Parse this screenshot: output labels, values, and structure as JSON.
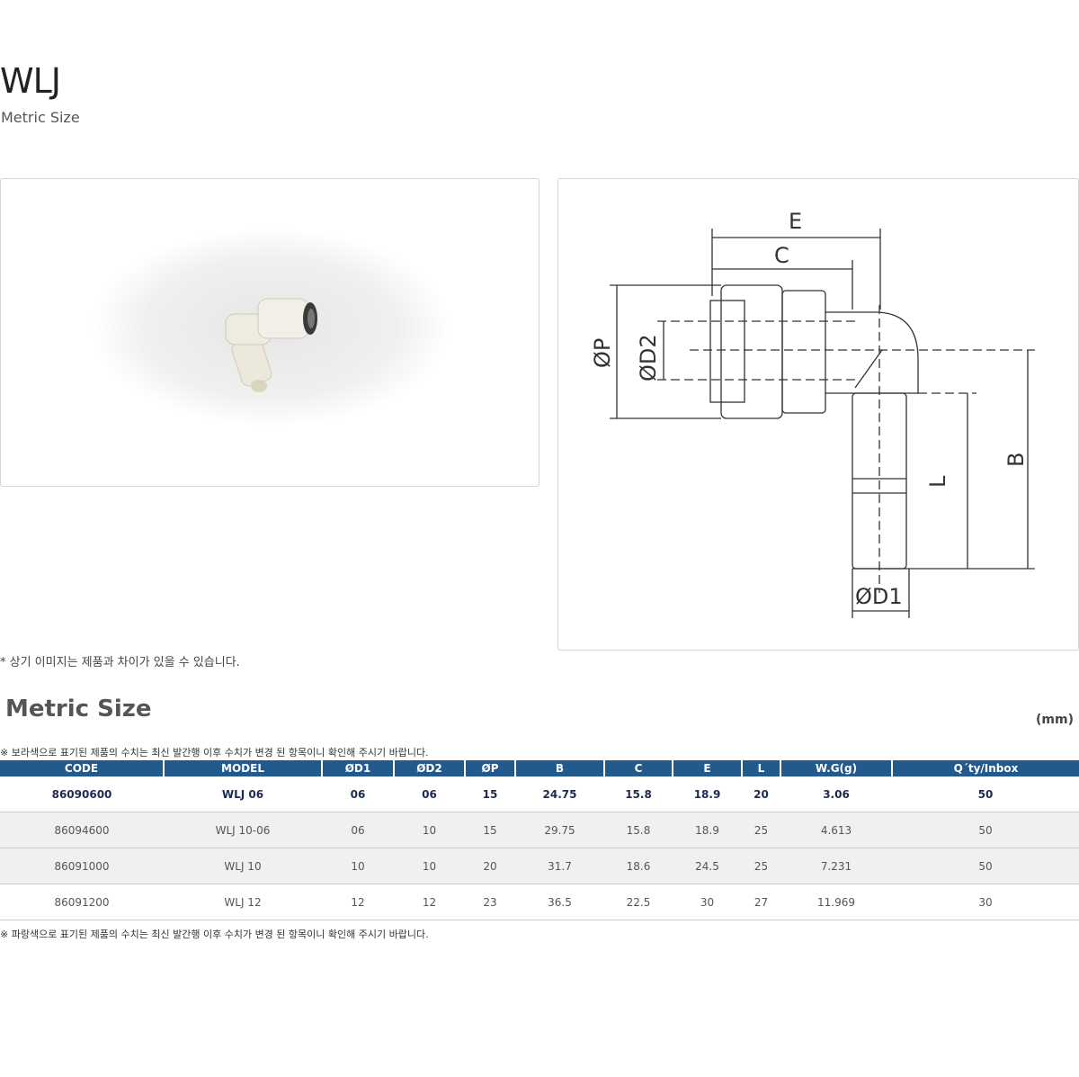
{
  "header": {
    "title": "WLJ",
    "subtitle": "Metric Size"
  },
  "drawing": {
    "labels": {
      "E": "E",
      "C": "C",
      "P": "ØP",
      "D2": "ØD2",
      "B": "B",
      "L": "L",
      "D1": "ØD1"
    }
  },
  "caption": "* 상기 이미지는 제품과 차이가 있을 수 있습니다.",
  "table_section": {
    "title": "Metric Size",
    "unit": "(mm)",
    "note_top": "※ 보라색으로 표기된 제품의 수치는 최신 발간행 이후 수치가 변경 된 항목이니 확인해 주시기 바랍니다.",
    "note_bottom": "※ 파랑색으로 표기된 제품의 수치는 최신 발간행 이후 수치가 변경 된 항목이니 확인해 주시기 바랍니다.",
    "header_color": "#225a8d",
    "columns": [
      "CODE",
      "MODEL",
      "ØD1",
      "ØD2",
      "ØP",
      "B",
      "C",
      "E",
      "L",
      "W.G(g)",
      "Q´ty/Inbox"
    ],
    "rows": [
      [
        "86090600",
        "WLJ 06",
        "06",
        "06",
        "15",
        "24.75",
        "15.8",
        "18.9",
        "20",
        "3.06",
        "50"
      ],
      [
        "86094600",
        "WLJ 10-06",
        "06",
        "10",
        "15",
        "29.75",
        "15.8",
        "18.9",
        "25",
        "4.613",
        "50"
      ],
      [
        "86091000",
        "WLJ 10",
        "10",
        "10",
        "20",
        "31.7",
        "18.6",
        "24.5",
        "25",
        "7.231",
        "50"
      ],
      [
        "86091200",
        "WLJ 12",
        "12",
        "12",
        "23",
        "36.5",
        "22.5",
        "30",
        "27",
        "11.969",
        "30"
      ]
    ]
  }
}
